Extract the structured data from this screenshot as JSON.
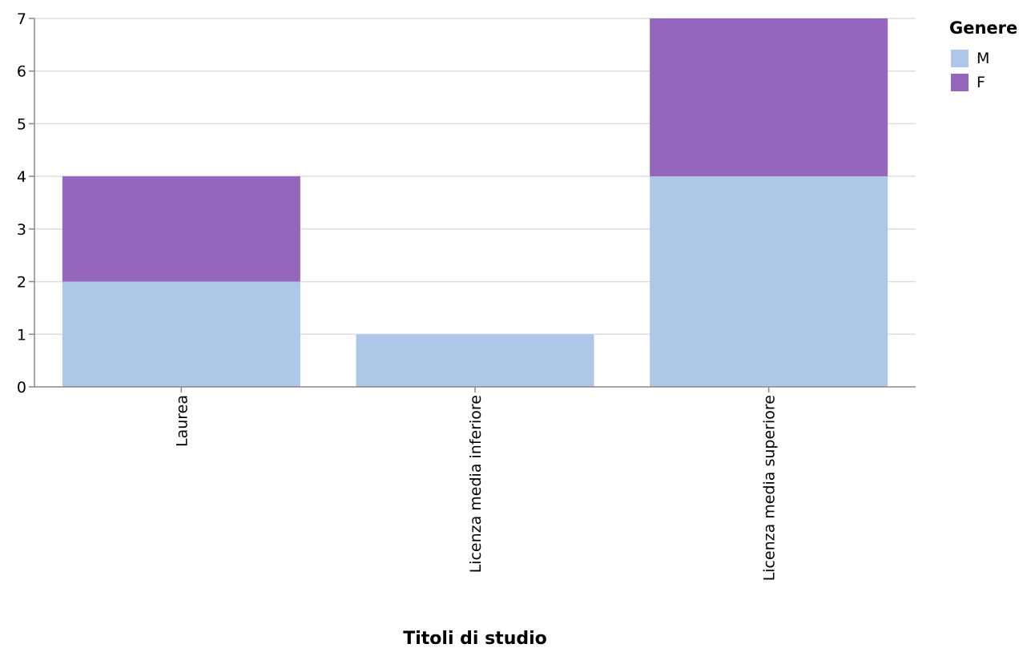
{
  "chart_data": {
    "type": "bar",
    "stacked": true,
    "categories": [
      "Laurea",
      "Licenza media inferiore",
      "Licenza media superiore"
    ],
    "series": [
      {
        "name": "M",
        "values": [
          2,
          1,
          4
        ],
        "color": "#aec7e8"
      },
      {
        "name": "F",
        "values": [
          2,
          0,
          3
        ],
        "color": "#9467bd"
      }
    ],
    "xlabel": "Titoli di studio",
    "ylabel": "",
    "ylim": [
      0,
      7
    ],
    "yticks": [
      0,
      1,
      2,
      3,
      4,
      5,
      6,
      7
    ],
    "grid": true,
    "legend": {
      "title": "Genere",
      "position": "top-right"
    }
  }
}
